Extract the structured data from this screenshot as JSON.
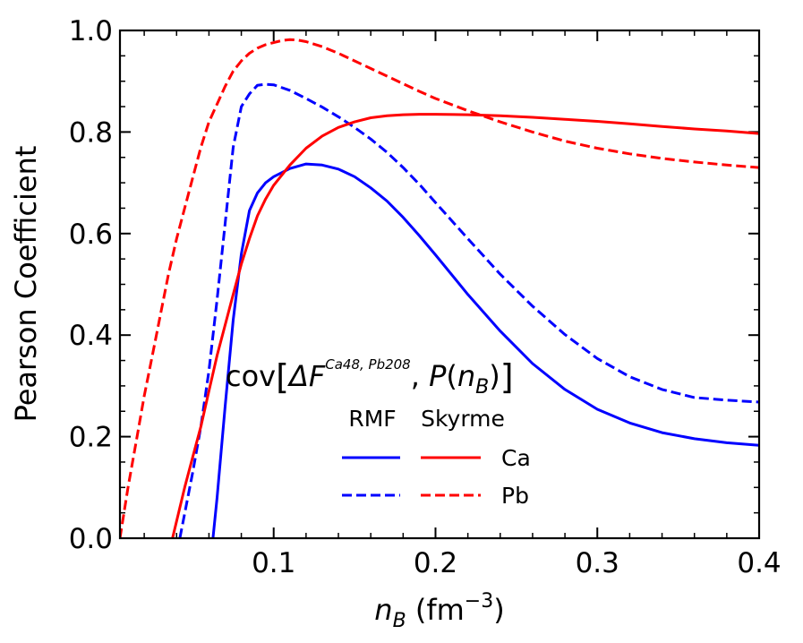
{
  "chart_data": {
    "type": "line",
    "xlabel": {
      "base": "n",
      "sub": "B",
      "unit_open": " (fm",
      "sup": "−3",
      "unit_close": ")"
    },
    "ylabel": "Pearson Coefficient",
    "xlim": [
      0.005,
      0.4
    ],
    "ylim": [
      0.0,
      1.0
    ],
    "xticks": [
      0.1,
      0.2,
      0.3,
      0.4
    ],
    "xtick_labels": [
      "0.1",
      "0.2",
      "0.3",
      "0.4"
    ],
    "yticks": [
      0.0,
      0.2,
      0.4,
      0.6,
      0.8,
      1.0
    ],
    "ytick_labels": [
      "0.0",
      "0.2",
      "0.4",
      "0.6",
      "0.8",
      "1.0"
    ],
    "x_minor_step": 0.02,
    "y_minor_step": 0.05,
    "annotation": {
      "cov": "cov",
      "lbr": "[",
      "delta_f": "ΔF",
      "superscript": "Ca48, Pb208",
      "comma": ", ",
      "p": "P",
      "paren_open": "(",
      "n": "n",
      "nsub": "B",
      "paren_close": ")",
      "rbr": "]"
    },
    "legend": {
      "col_headers": [
        "RMF",
        "Skyrme"
      ],
      "row_labels": [
        "Ca",
        "Pb"
      ],
      "placement": "lower-center"
    },
    "series": [
      {
        "name": "RMF Ca",
        "model": "RMF",
        "nucleus": "Ca",
        "color": "#0000ff",
        "dash": "solid",
        "x": [
          0.0625,
          0.065,
          0.07,
          0.075,
          0.08,
          0.085,
          0.09,
          0.095,
          0.1,
          0.11,
          0.12,
          0.13,
          0.14,
          0.15,
          0.16,
          0.17,
          0.18,
          0.19,
          0.2,
          0.22,
          0.24,
          0.26,
          0.28,
          0.3,
          0.32,
          0.34,
          0.36,
          0.38,
          0.4
        ],
        "y": [
          0.0,
          0.08,
          0.26,
          0.43,
          0.56,
          0.645,
          0.68,
          0.7,
          0.712,
          0.728,
          0.737,
          0.735,
          0.727,
          0.712,
          0.69,
          0.664,
          0.632,
          0.596,
          0.558,
          0.48,
          0.408,
          0.344,
          0.293,
          0.254,
          0.227,
          0.208,
          0.196,
          0.188,
          0.183
        ]
      },
      {
        "name": "RMF Pb",
        "model": "RMF",
        "nucleus": "Pb",
        "color": "#0000ff",
        "dash": "dashed",
        "x": [
          0.042,
          0.05,
          0.055,
          0.06,
          0.065,
          0.07,
          0.075,
          0.08,
          0.085,
          0.09,
          0.095,
          0.1,
          0.11,
          0.12,
          0.13,
          0.14,
          0.15,
          0.16,
          0.17,
          0.18,
          0.19,
          0.2,
          0.22,
          0.24,
          0.26,
          0.28,
          0.3,
          0.32,
          0.34,
          0.36,
          0.38,
          0.4
        ],
        "y": [
          0.0,
          0.13,
          0.22,
          0.33,
          0.47,
          0.62,
          0.77,
          0.85,
          0.875,
          0.892,
          0.894,
          0.893,
          0.882,
          0.866,
          0.849,
          0.83,
          0.809,
          0.786,
          0.76,
          0.73,
          0.697,
          0.661,
          0.59,
          0.52,
          0.457,
          0.401,
          0.354,
          0.318,
          0.293,
          0.277,
          0.272,
          0.268
        ]
      },
      {
        "name": "Skyrme Ca",
        "model": "Skyrme",
        "nucleus": "Ca",
        "color": "#ff0000",
        "dash": "solid",
        "x": [
          0.0375,
          0.045,
          0.05,
          0.055,
          0.06,
          0.065,
          0.07,
          0.075,
          0.08,
          0.085,
          0.09,
          0.095,
          0.1,
          0.11,
          0.12,
          0.13,
          0.14,
          0.15,
          0.16,
          0.17,
          0.18,
          0.19,
          0.2,
          0.22,
          0.24,
          0.26,
          0.28,
          0.3,
          0.32,
          0.34,
          0.36,
          0.38,
          0.4
        ],
        "y": [
          0.0,
          0.1,
          0.16,
          0.22,
          0.29,
          0.36,
          0.42,
          0.48,
          0.54,
          0.59,
          0.635,
          0.668,
          0.695,
          0.735,
          0.768,
          0.792,
          0.809,
          0.82,
          0.828,
          0.832,
          0.834,
          0.835,
          0.835,
          0.834,
          0.832,
          0.829,
          0.825,
          0.821,
          0.816,
          0.811,
          0.806,
          0.802,
          0.797
        ]
      },
      {
        "name": "Skyrme Pb",
        "model": "Skyrme",
        "nucleus": "Pb",
        "color": "#ff0000",
        "dash": "dashed",
        "x": [
          0.005,
          0.01,
          0.015,
          0.02,
          0.025,
          0.03,
          0.035,
          0.04,
          0.045,
          0.05,
          0.055,
          0.06,
          0.065,
          0.07,
          0.075,
          0.08,
          0.085,
          0.09,
          0.095,
          0.1,
          0.105,
          0.11,
          0.115,
          0.12,
          0.13,
          0.14,
          0.15,
          0.16,
          0.17,
          0.18,
          0.19,
          0.2,
          0.22,
          0.24,
          0.26,
          0.28,
          0.3,
          0.32,
          0.34,
          0.36,
          0.38,
          0.4
        ],
        "y": [
          0.0,
          0.1,
          0.19,
          0.28,
          0.36,
          0.44,
          0.52,
          0.59,
          0.65,
          0.71,
          0.77,
          0.82,
          0.855,
          0.89,
          0.92,
          0.94,
          0.955,
          0.965,
          0.972,
          0.976,
          0.98,
          0.982,
          0.981,
          0.978,
          0.968,
          0.955,
          0.94,
          0.925,
          0.91,
          0.895,
          0.88,
          0.866,
          0.842,
          0.82,
          0.8,
          0.782,
          0.768,
          0.757,
          0.748,
          0.741,
          0.735,
          0.73
        ]
      }
    ]
  }
}
